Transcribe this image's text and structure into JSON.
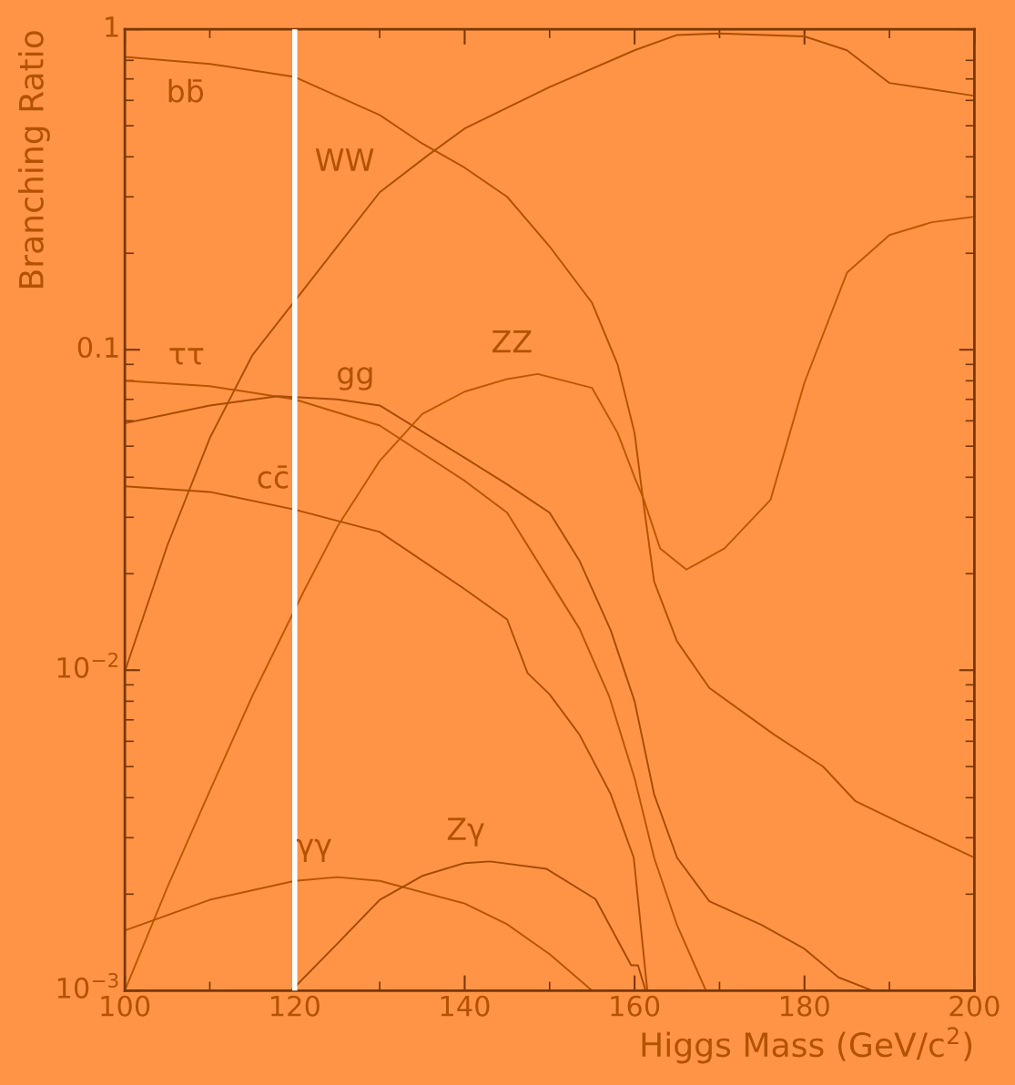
{
  "chart_data": {
    "type": "line",
    "xlabel": "Higgs Mass (GeV/c$^{2}$)",
    "ylabel": "Branching Ratio",
    "log": "y",
    "xlim": [
      100,
      200
    ],
    "xticks": [
      100,
      120,
      140,
      160,
      180,
      200
    ],
    "ylim": [
      0.001,
      1
    ],
    "yticks": [
      {
        "value": 0.001,
        "label": "10$^{−3}$"
      },
      {
        "value": 0.01,
        "label": "10$^{−2}$"
      },
      0.1,
      1
    ],
    "grid": false,
    "legend": false,
    "marker": "none",
    "line_style": "solid",
    "series": [
      {
        "color": "#b35201",
        "x": [
          100,
          110,
          120,
          130,
          135,
          140,
          145,
          150,
          155,
          158,
          160,
          161,
          162.3,
          165,
          168.8,
          176.4,
          182.2,
          186,
          191.7,
          200
        ],
        "values": [
          0.82,
          0.78,
          0.71,
          0.54,
          0.44,
          0.37,
          0.3,
          0.21,
          0.14,
          0.09,
          0.055,
          0.034,
          0.0189,
          0.0123,
          0.0088,
          0.0063,
          0.005,
          0.0039,
          0.0033,
          0.0026
        ]
      },
      {
        "color": "#ad4f00",
        "x": [
          100,
          105,
          110,
          115,
          120,
          125,
          130,
          135.7,
          140,
          150,
          160,
          165,
          170,
          180,
          185,
          190,
          200
        ],
        "values": [
          0.0099,
          0.0245,
          0.053,
          0.096,
          0.142,
          0.21,
          0.31,
          0.405,
          0.49,
          0.66,
          0.86,
          0.96,
          0.97,
          0.95,
          0.86,
          0.68,
          0.62
        ]
      },
      {
        "color": "#b95600",
        "x": [
          100,
          110,
          120,
          130,
          140,
          145,
          150,
          153.5,
          157,
          160,
          162.3,
          165,
          168.4
        ],
        "values": [
          0.08,
          0.077,
          0.07,
          0.058,
          0.039,
          0.031,
          0.019,
          0.0135,
          0.0083,
          0.0046,
          0.0026,
          0.0016,
          0.001
        ]
      },
      {
        "color": "#a94c00",
        "x": [
          100,
          110,
          118,
          125,
          130,
          140,
          145,
          150,
          153.5,
          157.2,
          160,
          162.3,
          165,
          168.8,
          175,
          180,
          184,
          188
        ],
        "values": [
          0.059,
          0.067,
          0.0716,
          0.07,
          0.067,
          0.046,
          0.038,
          0.031,
          0.022,
          0.0133,
          0.008,
          0.0041,
          0.0026,
          0.0019,
          0.0016,
          0.00135,
          0.0011,
          0.001
        ]
      },
      {
        "color": "#bd5800",
        "x": [
          100,
          105,
          110,
          115,
          121,
          125,
          130,
          135,
          140,
          145,
          148.6,
          155,
          158,
          160,
          161.1,
          163,
          166.1,
          170.6,
          176,
          180,
          185,
          190,
          195,
          200
        ],
        "values": [
          0.001,
          0.0021,
          0.0042,
          0.0083,
          0.0175,
          0.028,
          0.045,
          0.063,
          0.074,
          0.081,
          0.084,
          0.076,
          0.055,
          0.04,
          0.034,
          0.024,
          0.0206,
          0.024,
          0.034,
          0.079,
          0.174,
          0.228,
          0.25,
          0.26
        ]
      },
      {
        "color": "#b04e00",
        "x": [
          100,
          110,
          120,
          130,
          140,
          145,
          147.4,
          150,
          153.5,
          157.2,
          159.9,
          161.5
        ],
        "values": [
          0.0375,
          0.036,
          0.0317,
          0.027,
          0.0179,
          0.0144,
          0.0098,
          0.0084,
          0.0063,
          0.0041,
          0.0026,
          0.001
        ]
      },
      {
        "color": "#b65500",
        "x": [
          100,
          110,
          120,
          125,
          130,
          140,
          145,
          150,
          155
        ],
        "values": [
          0.00154,
          0.00192,
          0.0022,
          0.00226,
          0.0022,
          0.00187,
          0.00161,
          0.0013,
          0.001
        ]
      },
      {
        "color": "#a64a00",
        "x": [
          119.6,
          125,
          130,
          135,
          140,
          143,
          149.6,
          155.4,
          159.6,
          160.4,
          161.3
        ],
        "values": [
          0.001,
          0.0014,
          0.00192,
          0.00228,
          0.0025,
          0.00253,
          0.0024,
          0.00193,
          0.0012,
          0.0012,
          0.001
        ]
      }
    ],
    "ref_lines": [
      {
        "axis": "x",
        "value": 120,
        "color": "#ffffff"
      }
    ],
    "annotations": [
      {
        "text": "bb̄",
        "x": 110,
        "y": 0.78
      },
      {
        "text": "WW",
        "x": 130,
        "y": 0.31
      },
      {
        "text": "ττ",
        "x": 110,
        "y": 0.077
      },
      {
        "text": "gg",
        "x": 130,
        "y": 0.067
      },
      {
        "text": "ZZ",
        "x": 148.6,
        "y": 0.084
      },
      {
        "text": "cc̄",
        "x": 120,
        "y": 0.0317
      },
      {
        "text": "γγ",
        "x": 125,
        "y": 0.00226
      },
      {
        "text": "Zγ",
        "x": 143,
        "y": 0.00253
      }
    ]
  }
}
